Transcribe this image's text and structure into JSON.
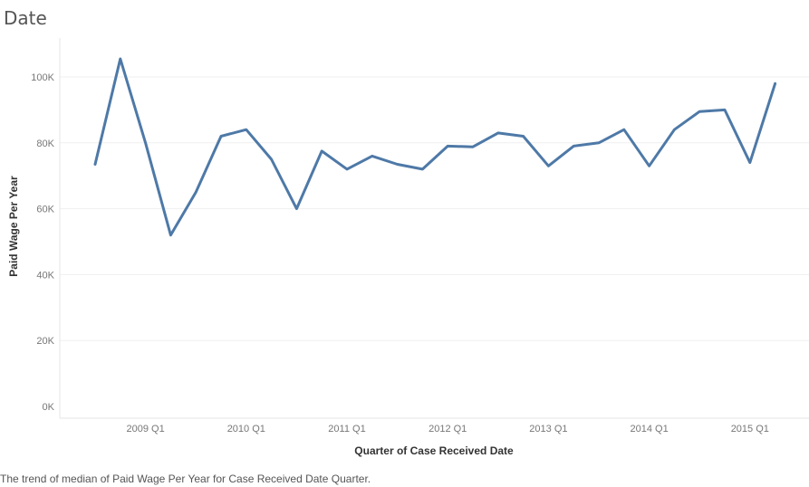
{
  "header": {
    "title": "Date"
  },
  "footer": {
    "caption": "The trend of median of Paid Wage Per Year for Case Received Date Quarter."
  },
  "chart_data": {
    "type": "line",
    "title": "Date",
    "xlabel": "Quarter of Case Received Date",
    "ylabel": "Paid Wage Per Year",
    "ylim": [
      0,
      110000
    ],
    "yticks": [
      0,
      20000,
      40000,
      60000,
      80000,
      100000
    ],
    "ytick_labels": [
      "0K",
      "20K",
      "40K",
      "60K",
      "80K",
      "100K"
    ],
    "xticks": [
      "2009 Q1",
      "2010 Q1",
      "2011 Q1",
      "2012 Q1",
      "2013 Q1",
      "2014 Q1",
      "2015 Q1"
    ],
    "grid": true,
    "color": "#4e79a7",
    "x": [
      "2008 Q3",
      "2008 Q4",
      "2009 Q1",
      "2009 Q2",
      "2009 Q3",
      "2009 Q4",
      "2010 Q1",
      "2010 Q2",
      "2010 Q3",
      "2010 Q4",
      "2011 Q1",
      "2011 Q2",
      "2011 Q3",
      "2011 Q4",
      "2012 Q1",
      "2012 Q2",
      "2012 Q3",
      "2012 Q4",
      "2013 Q1",
      "2013 Q2",
      "2013 Q3",
      "2013 Q4",
      "2014 Q1",
      "2014 Q2",
      "2014 Q3",
      "2014 Q4",
      "2015 Q1",
      "2015 Q2"
    ],
    "series": [
      {
        "values": [
          73500,
          105500,
          80000,
          52000,
          65000,
          82000,
          84000,
          75000,
          60000,
          77500,
          72000,
          76000,
          73500,
          72000,
          79000,
          78800,
          83000,
          82000,
          73000,
          79000,
          80000,
          84000,
          73000,
          84000,
          89500,
          90000,
          74000,
          98000
        ]
      }
    ]
  }
}
